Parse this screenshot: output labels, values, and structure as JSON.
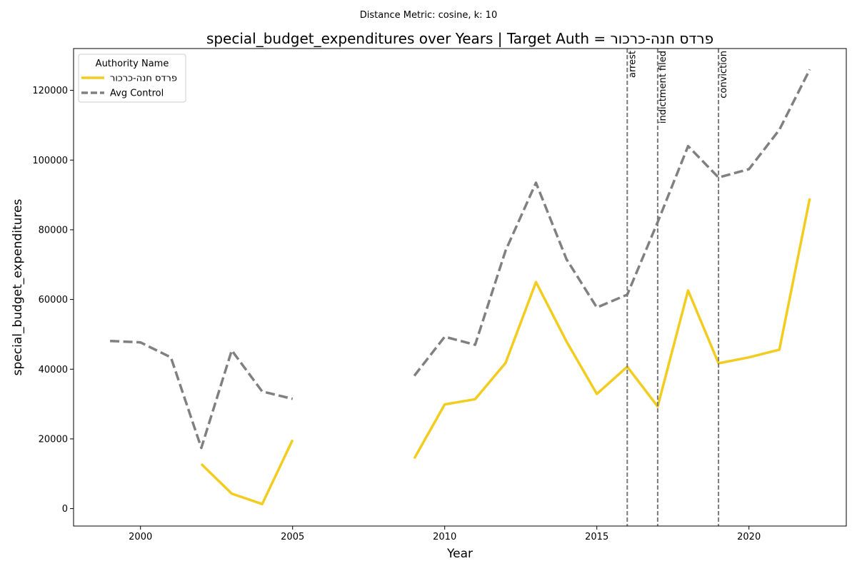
{
  "suptitle": "Distance Metric: cosine, k: 10",
  "chart_data": {
    "type": "line",
    "title": "special_budget_expenditures over Years | Target Auth = פרדס חנה-כרכור",
    "xlabel": "Year",
    "ylabel": "special_budget_expenditures",
    "xlim": [
      1997.8,
      2023.2
    ],
    "ylim": [
      -5000,
      132000
    ],
    "x_ticks": [
      2000,
      2005,
      2010,
      2015,
      2020
    ],
    "y_ticks": [
      0,
      20000,
      40000,
      60000,
      80000,
      100000,
      120000
    ],
    "grid": false,
    "legend": {
      "title": "Authority Name",
      "placement": "upper-left"
    },
    "series": [
      {
        "name": "פרדס חנה-כרכור",
        "color": "#f2cc1f",
        "style": "solid",
        "segments": [
          [
            [
              2002,
              12800
            ],
            [
              2003,
              4300
            ],
            [
              2004,
              1300
            ],
            [
              2005,
              19700
            ]
          ],
          [
            [
              2009,
              14400
            ],
            [
              2010,
              29900
            ],
            [
              2011,
              31400
            ],
            [
              2012,
              41800
            ],
            [
              2013,
              65000
            ],
            [
              2014,
              48000
            ],
            [
              2015,
              32900
            ],
            [
              2016,
              40700
            ],
            [
              2017,
              29300
            ],
            [
              2018,
              62600
            ],
            [
              2019,
              41700
            ],
            [
              2020,
              43400
            ],
            [
              2021,
              45600
            ],
            [
              2022,
              89000
            ]
          ]
        ]
      },
      {
        "name": "Avg Control",
        "color": "#808080",
        "style": "dashed",
        "segments": [
          [
            [
              1999,
              48100
            ],
            [
              2000,
              47700
            ],
            [
              2001,
              43400
            ],
            [
              2002,
              17400
            ],
            [
              2003,
              45400
            ],
            [
              2004,
              33600
            ],
            [
              2005,
              31500
            ]
          ],
          [
            [
              2009,
              38100
            ],
            [
              2010,
              49300
            ],
            [
              2011,
              47000
            ],
            [
              2012,
              74000
            ],
            [
              2013,
              93500
            ],
            [
              2014,
              71600
            ],
            [
              2015,
              57700
            ],
            [
              2016,
              61400
            ],
            [
              2017,
              82200
            ],
            [
              2018,
              104000
            ],
            [
              2019,
              95000
            ],
            [
              2020,
              97400
            ],
            [
              2021,
              108700
            ],
            [
              2022,
              126000
            ]
          ]
        ]
      }
    ],
    "annotations": [
      {
        "x": 2016,
        "label": "arrest"
      },
      {
        "x": 2017,
        "label": "indictment filed"
      },
      {
        "x": 2019,
        "label": "conviction"
      }
    ]
  }
}
